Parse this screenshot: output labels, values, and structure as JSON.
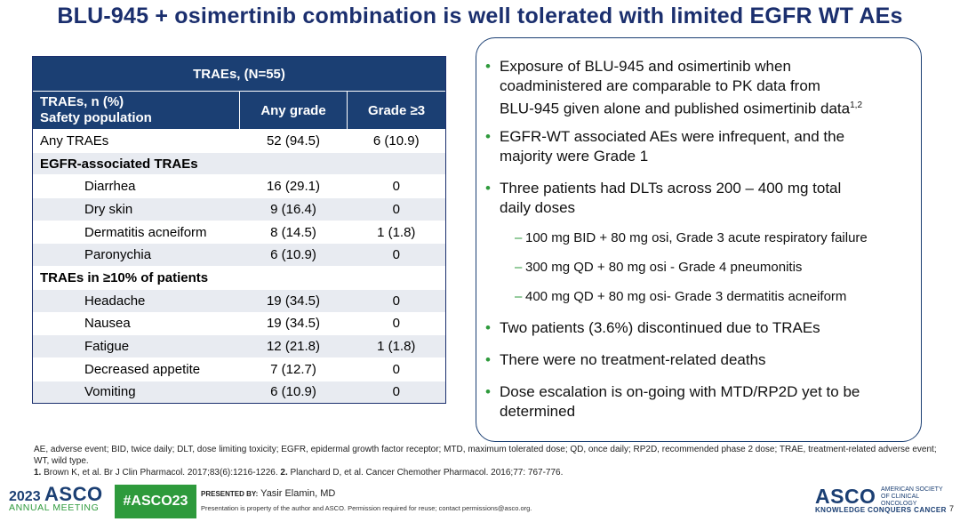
{
  "title": "BLU-945 + osimertinib combination is well tolerated with limited EGFR WT AEs",
  "table": {
    "caption": "TRAEs, (N=55)",
    "header_label_line1": "TRAEs, n (%)",
    "header_label_line2": "Safety population",
    "col_any": "Any grade",
    "col_g3": "Grade ≥3",
    "rows": [
      {
        "label": "Any TRAEs",
        "any": "52 (94.5)",
        "g3": "6 (10.9)"
      },
      {
        "label": "EGFR-associated TRAEs"
      },
      {
        "label": "Diarrhea",
        "any": "16 (29.1)",
        "g3": "0"
      },
      {
        "label": "Dry skin",
        "any": "9 (16.4)",
        "g3": "0"
      },
      {
        "label": "Dermatitis acneiform",
        "any": "8 (14.5)",
        "g3": "1 (1.8)"
      },
      {
        "label": "Paronychia",
        "any": "6 (10.9)",
        "g3": "0"
      },
      {
        "label": "TRAEs in ≥10% of patients"
      },
      {
        "label": "Headache",
        "any": "19 (34.5)",
        "g3": "0"
      },
      {
        "label": "Nausea",
        "any": "19 (34.5)",
        "g3": "0"
      },
      {
        "label": "Fatigue",
        "any": "12 (21.8)",
        "g3": "1 (1.8)"
      },
      {
        "label": "Decreased appetite",
        "any": "7 (12.7)",
        "g3": "0"
      },
      {
        "label": "Vomiting",
        "any": "6 (10.9)",
        "g3": "0"
      }
    ]
  },
  "bullets": {
    "b1_l1": "Exposure of BLU-945 and osimertinib when",
    "b1_l2": "coadministered are comparable to PK data from",
    "b1_l3": "BLU-945 given alone and published osimertinib data",
    "b1_sup": "1,2",
    "b2_l1": "EGFR-WT associated AEs were infrequent, and the",
    "b2_l2": "majority were Grade 1",
    "b3_l1": "Three patients had DLTs across 200 – 400 mg total",
    "b3_l2": "daily doses",
    "s1": "100 mg BID + 80 mg osi, Grade 3 acute respiratory failure",
    "s2": "300 mg QD + 80 mg osi - Grade 4 pneumonitis",
    "s3": "400 mg QD + 80 mg osi- Grade 3 dermatitis acneiform",
    "b4": "Two patients (3.6%) discontinued due to TRAEs",
    "b5": "There were no treatment-related deaths",
    "b6_l1": "Dose escalation is on-going with MTD/RP2D yet to be",
    "b6_l2": "determined"
  },
  "footnote": "AE, adverse event; BID, twice daily; DLT, dose limiting toxicity; EGFR, epidermal growth factor receptor; MTD, maximum tolerated dose; QD, once daily; RP2D, recommended phase 2 dose; TRAE, treatment-related adverse event; WT, wild type.",
  "ref1_num": "1.",
  "ref1": "Brown K, et al. Br J Clin Pharmacol. 2017;83(6):1216-1226.",
  "ref2_num": "2.",
  "ref2": "Planchard D, et al. Cancer Chemother Pharmacol. 2016;77: 767-776.",
  "footer": {
    "year": "2023",
    "asco": "ASCO",
    "meeting": "ANNUAL MEETING",
    "hashtag": "#ASCO23",
    "presented_by": "PRESENTED BY:",
    "presenter": "Yasir Elamin, MD",
    "note": "Presentation is property of the author and ASCO. Permission required for reuse; contact permissions@asco.org.",
    "asco_right": "ASCO",
    "society": "AMERICAN SOCIETY OF CLINICAL ONCOLOGY",
    "tagline": "KNOWLEDGE CONQUERS CANCER",
    "page": "7"
  },
  "colors": {
    "navy": "#1b3f73",
    "green": "#2e9a3c",
    "stripe": "#e8ebf1"
  }
}
